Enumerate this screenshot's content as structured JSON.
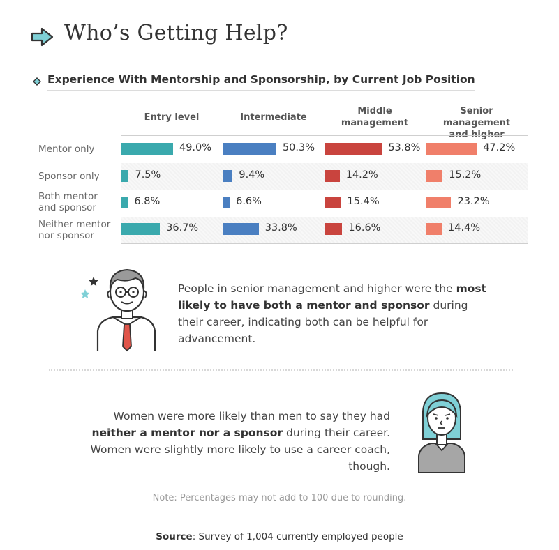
{
  "header": {
    "title": "Who’s Getting Help?",
    "chart_title": "Experience With Mentorship and Sponsorship, by Current Job Position"
  },
  "chart_data": {
    "type": "bar",
    "title": "Experience With Mentorship and Sponsorship, by Current Job Position",
    "columns": [
      "Entry level",
      "Intermediate",
      "Middle management",
      "Senior management and higher"
    ],
    "categories": [
      "Mentor only",
      "Sponsor only",
      "Both mentor and sponsor",
      "Neither mentor nor sponsor"
    ],
    "series": [
      {
        "name": "Entry level",
        "color": "#3aa9ad",
        "values": [
          49.0,
          7.5,
          6.8,
          36.7
        ],
        "labels": [
          "49.0%",
          "7.5%",
          "6.8%",
          "36.7%"
        ]
      },
      {
        "name": "Intermediate",
        "color": "#4a7fc1",
        "values": [
          50.3,
          9.4,
          6.6,
          33.8
        ],
        "labels": [
          "50.3%",
          "9.4%",
          "6.6%",
          "33.8%"
        ]
      },
      {
        "name": "Middle management",
        "color": "#c9443e",
        "values": [
          53.8,
          14.2,
          15.4,
          16.6
        ],
        "labels": [
          "53.8%",
          "14.2%",
          "15.4%",
          "16.6%"
        ]
      },
      {
        "name": "Senior management and higher",
        "color": "#f07f6a",
        "values": [
          47.2,
          15.2,
          23.2,
          14.4
        ],
        "labels": [
          "47.2%",
          "15.2%",
          "23.2%",
          "14.4%"
        ]
      }
    ],
    "unit": "%"
  },
  "headers": {
    "c1": "Entry level",
    "c2": "Intermediate",
    "c3a": "Middle",
    "c3b": "management",
    "c4a": "Senior management",
    "c4b": "and higher"
  },
  "rows": {
    "r1": "Mentor only",
    "r2": "Sponsor only",
    "r3a": "Both mentor",
    "r3b": "and sponsor",
    "r4a": "Neither mentor",
    "r4b": "nor sponsor"
  },
  "note1": {
    "pre": "People in senior management and higher were the ",
    "bold": "most likely to have both a mentor and sponsor",
    "post": " during their career, indicating both can be helpful for advancement."
  },
  "note2": {
    "pre": "Women were more likely than men to say they had ",
    "bold": "neither a mentor nor a sponsor",
    "post": " during their career. Women were slightly more likely to use a career coach, though."
  },
  "footnote": "Note: Percentages may not add to 100 due to rounding.",
  "source": {
    "label": "Source",
    "text": ": Survey of 1,004 currently employed people"
  },
  "colors": {
    "accent": "#5bb8c2",
    "entry": "#3aa9ad",
    "intermediate": "#4a7fc1",
    "middle": "#c9443e",
    "senior": "#f07f6a"
  }
}
